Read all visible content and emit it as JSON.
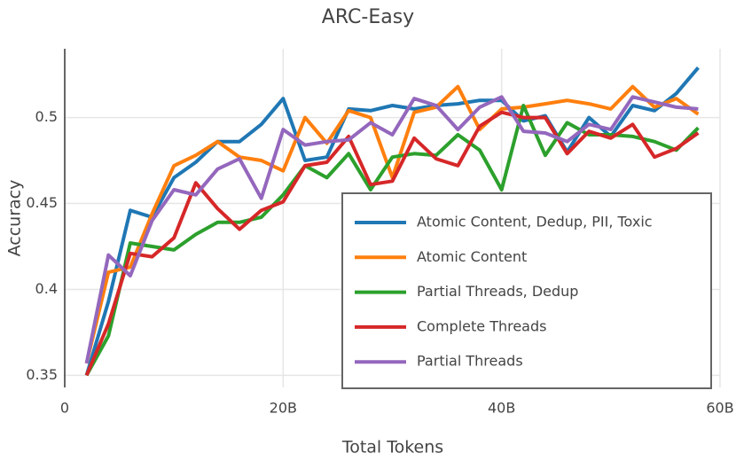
{
  "chart_data": {
    "type": "line",
    "title": "ARC-Easy",
    "xlabel": "Total Tokens",
    "ylabel": "Accuracy",
    "x": [
      2,
      4,
      6,
      8,
      10,
      12,
      14,
      16,
      18,
      20,
      22,
      24,
      26,
      28,
      30,
      32,
      34,
      36,
      38,
      40,
      42,
      44,
      46,
      48,
      50,
      52,
      54,
      56,
      58
    ],
    "xlim": [
      0,
      60
    ],
    "ylim": [
      0.343,
      0.54
    ],
    "xticks": [
      0,
      {
        "value": 20,
        "label": "20B"
      },
      {
        "value": 40,
        "label": "40B"
      },
      {
        "value": 60,
        "label": "60B"
      }
    ],
    "yticks": [
      0.35,
      0.4,
      0.45,
      0.5
    ],
    "grid": true,
    "legend": "lower right",
    "series": [
      {
        "name": "Atomic Content, Dedup, PII, Toxic",
        "color": "#1f77b4",
        "values": [
          0.35,
          0.393,
          0.446,
          0.442,
          0.465,
          0.474,
          0.486,
          0.486,
          0.496,
          0.511,
          0.475,
          0.477,
          0.505,
          0.504,
          0.507,
          0.505,
          0.507,
          0.508,
          0.51,
          0.51,
          0.498,
          0.501,
          0.48,
          0.5,
          0.489,
          0.507,
          0.504,
          0.514,
          0.529
        ]
      },
      {
        "name": "Atomic Content",
        "color": "#ff7f0e",
        "values": [
          0.357,
          0.41,
          0.413,
          0.444,
          0.472,
          0.478,
          0.486,
          0.477,
          0.475,
          0.469,
          0.5,
          0.485,
          0.504,
          0.5,
          0.465,
          0.503,
          0.506,
          0.518,
          0.493,
          0.505,
          0.506,
          0.508,
          0.51,
          0.508,
          0.505,
          0.518,
          0.506,
          0.511,
          0.502
        ]
      },
      {
        "name": "Partial Threads, Dedup",
        "color": "#2ca02c",
        "values": [
          0.35,
          0.373,
          0.427,
          0.425,
          0.423,
          0.432,
          0.439,
          0.439,
          0.442,
          0.455,
          0.472,
          0.465,
          0.479,
          0.458,
          0.477,
          0.479,
          0.478,
          0.49,
          0.481,
          0.458,
          0.507,
          0.478,
          0.497,
          0.49,
          0.49,
          0.489,
          0.486,
          0.481,
          0.494
        ]
      },
      {
        "name": "Complete Threads",
        "color": "#d62728",
        "values": [
          0.35,
          0.38,
          0.421,
          0.419,
          0.43,
          0.462,
          0.447,
          0.435,
          0.446,
          0.451,
          0.472,
          0.474,
          0.489,
          0.461,
          0.463,
          0.488,
          0.476,
          0.472,
          0.495,
          0.503,
          0.5,
          0.5,
          0.479,
          0.492,
          0.488,
          0.496,
          0.477,
          0.482,
          0.491
        ]
      },
      {
        "name": "Partial Threads",
        "color": "#9467bd",
        "values": [
          0.357,
          0.42,
          0.408,
          0.44,
          0.458,
          0.455,
          0.47,
          0.476,
          0.453,
          0.493,
          0.484,
          0.486,
          0.487,
          0.497,
          0.49,
          0.511,
          0.507,
          0.493,
          0.506,
          0.512,
          0.492,
          0.491,
          0.486,
          0.496,
          0.493,
          0.512,
          0.509,
          0.506,
          0.505
        ]
      }
    ]
  }
}
